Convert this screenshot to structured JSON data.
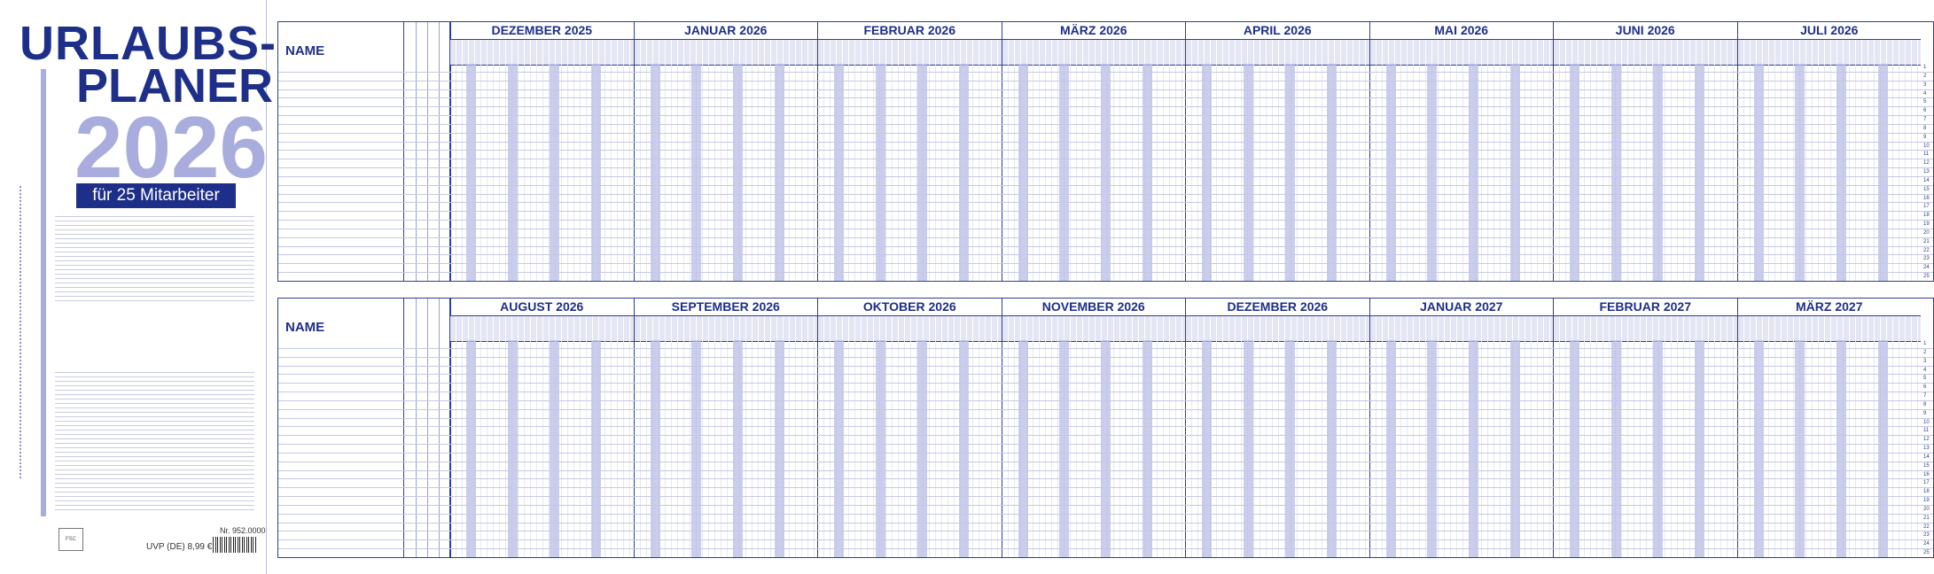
{
  "cover": {
    "title_line1": "URLAUBS-",
    "title_line2": "PLANER",
    "year": "2026",
    "subtitle": "für 25 Mitarbeiter",
    "article_number": "Nr. 952.0000",
    "price": "UVP (DE) 8,99 €"
  },
  "planner": {
    "name_label": "NAME",
    "row_count": 25,
    "top_months": [
      "DEZEMBER 2025",
      "JANUAR 2026",
      "FEBRUAR 2026",
      "MÄRZ 2026",
      "APRIL 2026",
      "MAI 2026",
      "JUNI 2026",
      "JULI 2026"
    ],
    "bottom_months": [
      "AUGUST 2026",
      "SEPTEMBER 2026",
      "OKTOBER 2026",
      "NOVEMBER 2026",
      "DEZEMBER 2026",
      "JANUAR 2027",
      "FEBRUAR 2027",
      "MÄRZ 2027"
    ],
    "rows": [
      "1",
      "2",
      "3",
      "4",
      "5",
      "6",
      "7",
      "8",
      "9",
      "10",
      "11",
      "12",
      "13",
      "14",
      "15",
      "16",
      "17",
      "18",
      "19",
      "20",
      "21",
      "22",
      "23",
      "24",
      "25"
    ]
  },
  "colors": {
    "brand": "#1e2f8a",
    "accent": "#a9adde",
    "weekend": "#b8bde6"
  }
}
